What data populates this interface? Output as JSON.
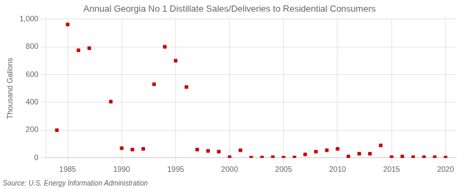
{
  "chart_data": {
    "type": "scatter",
    "title": "Annual Georgia No 1 Distillate Sales/Deliveries to Residential Consumers",
    "y_label": "Thousand Gallons",
    "annotations": [
      "Source: U.S. Energy Information Administration"
    ],
    "x": [
      1984,
      1985,
      1986,
      1987,
      1993,
      1994,
      1995,
      1996,
      1997,
      1998,
      1999,
      2000,
      2001,
      2002,
      2003,
      2004,
      2005,
      2006,
      2007,
      2008,
      2009,
      2010,
      2011,
      2012,
      2013,
      2014,
      2015,
      2016,
      2017,
      2018,
      2019,
      2020,
      1989,
      1990,
      1991,
      1992
    ],
    "values": [
      200,
      960,
      775,
      790,
      530,
      800,
      700,
      510,
      60,
      50,
      45,
      5,
      55,
      2,
      3,
      5,
      2,
      3,
      25,
      45,
      55,
      65,
      10,
      30,
      30,
      90,
      5,
      10,
      5,
      5,
      5,
      3,
      405,
      70,
      60,
      65
    ],
    "color": "#cc0000",
    "marker": "square",
    "xlim": [
      1983,
      2021
    ],
    "xticks": [
      1985,
      1990,
      1995,
      2000,
      2005,
      2010,
      2015,
      2020
    ],
    "ylim": [
      0,
      1000
    ],
    "yticks": [
      0,
      200,
      400,
      600,
      800,
      {
        "value": 1000,
        "label": "1,000"
      }
    ],
    "grid": true
  }
}
